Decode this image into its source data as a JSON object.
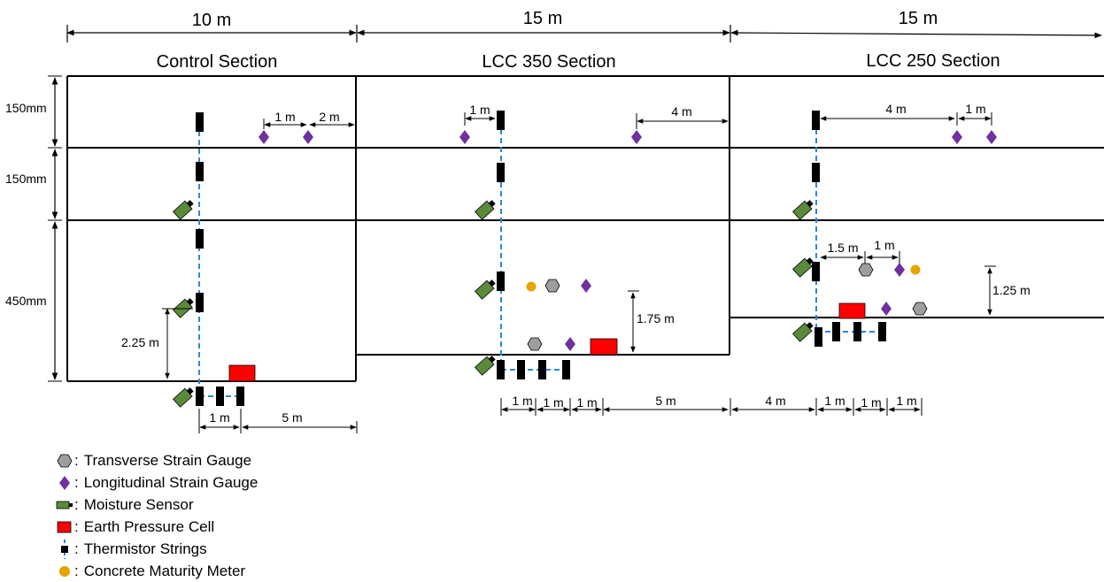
{
  "colors": {
    "thermistor": "#000000",
    "thermistor_line": "#2f87d6",
    "moisture": "#5b8a3a",
    "pressure": "#ff0000",
    "strain_long": "#7030a0",
    "strain_trans": "#9e9e9e",
    "maturity": "#e6a400"
  },
  "sections": [
    {
      "name": "Control Section",
      "width": "10 m"
    },
    {
      "name": "LCC 350 Section",
      "width": "15 m"
    },
    {
      "name": "LCC 250 Section",
      "width": "15 m"
    }
  ],
  "layers": [
    "150mm",
    "150mm",
    "450mm"
  ],
  "dimensions": {
    "control_top_1": "1 m",
    "control_top_2": "2 m",
    "control_height": "2.25 m",
    "control_bottom_1": "1 m",
    "control_bottom_2": "5 m",
    "lcc350_top_1": "1 m",
    "lcc350_top_2": "4 m",
    "lcc350_height": "1.75 m",
    "lcc350_bottom": [
      "1 m",
      "1 m",
      "1 m",
      "5 m"
    ],
    "lcc250_top_1": "4 m",
    "lcc250_top_2": "1 m",
    "lcc250_mid_1": "1.5 m",
    "lcc250_mid_2": "1 m",
    "lcc250_height": "1.25 m",
    "lcc250_bottom": [
      "4 m",
      "1 m",
      "1 m",
      "1 m"
    ]
  },
  "legend": [
    {
      "icon": "hexagon-icon",
      "label": "Transverse Strain Gauge"
    },
    {
      "icon": "diamond-icon",
      "label": "Longitudinal Strain Gauge"
    },
    {
      "icon": "moisture-sensor-icon",
      "label": "Moisture Sensor"
    },
    {
      "icon": "pressure-cell-icon",
      "label": "Earth Pressure Cell"
    },
    {
      "icon": "thermistor-icon",
      "label": "Thermistor Strings"
    },
    {
      "icon": "circle-icon",
      "label": "Concrete Maturity Meter"
    }
  ]
}
